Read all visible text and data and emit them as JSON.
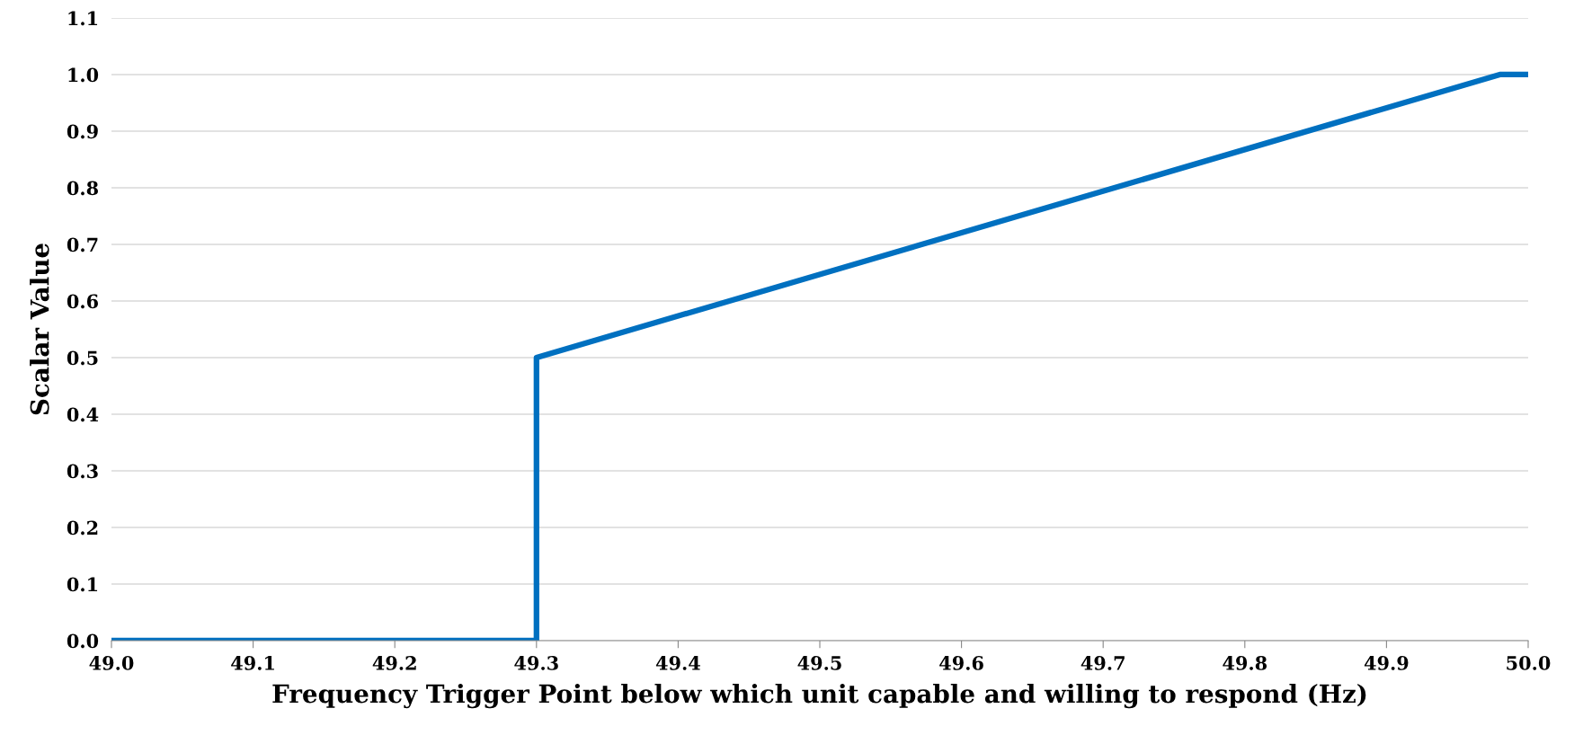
{
  "chart_data": {
    "type": "line",
    "xlabel": "Frequency Trigger Point below which unit capable and willing to respond (Hz)",
    "ylabel": "Scalar Value",
    "x": [
      49.0,
      49.3,
      49.3,
      49.98,
      50.0
    ],
    "series": [
      {
        "color": "#0070c0",
        "values": [
          0.0,
          0.0,
          0.5,
          1.0,
          1.0
        ]
      }
    ],
    "xlim": [
      49.0,
      50.0
    ],
    "xticks": [
      {
        "value": 49.0,
        "label": "49.0"
      },
      {
        "value": 49.1,
        "label": "49.1"
      },
      {
        "value": 49.2,
        "label": "49.2"
      },
      {
        "value": 49.3,
        "label": "49.3"
      },
      {
        "value": 49.4,
        "label": "49.4"
      },
      {
        "value": 49.5,
        "label": "49.5"
      },
      {
        "value": 49.6,
        "label": "49.6"
      },
      {
        "value": 49.7,
        "label": "49.7"
      },
      {
        "value": 49.8,
        "label": "49.8"
      },
      {
        "value": 49.9,
        "label": "49.9"
      },
      {
        "value": 50.0,
        "label": "50.0"
      }
    ],
    "ylim": [
      0.0,
      1.1
    ],
    "yticks": [
      {
        "value": 0.0,
        "label": "0.0"
      },
      {
        "value": 0.1,
        "label": "0.1"
      },
      {
        "value": 0.2,
        "label": "0.2"
      },
      {
        "value": 0.3,
        "label": "0.3"
      },
      {
        "value": 0.4,
        "label": "0.4"
      },
      {
        "value": 0.5,
        "label": "0.5"
      },
      {
        "value": 0.6,
        "label": "0.6"
      },
      {
        "value": 0.7,
        "label": "0.7"
      },
      {
        "value": 0.8,
        "label": "0.8"
      },
      {
        "value": 0.9,
        "label": "0.9"
      },
      {
        "value": 1.0,
        "label": "1.0"
      },
      {
        "value": 1.1,
        "label": "1.1"
      }
    ],
    "grid": "y",
    "marker": "none",
    "line_style": "solid"
  }
}
